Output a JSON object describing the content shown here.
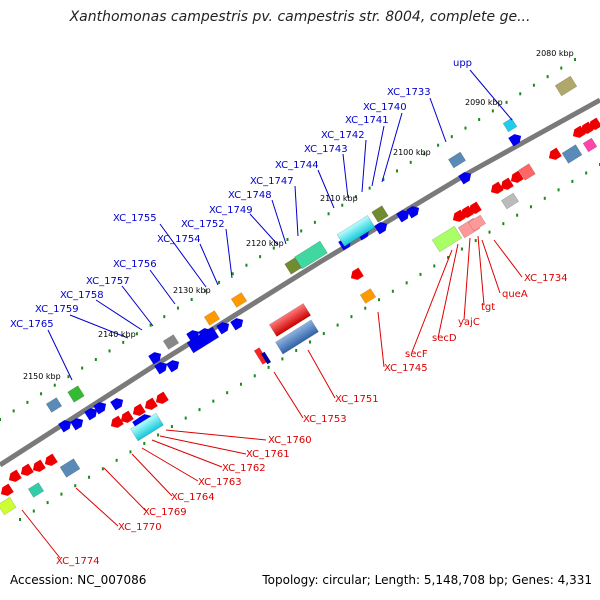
{
  "title": "Xanthomonas campestris pv. campestris str. 8004, complete ge...",
  "footer": {
    "accession": "Accession: NC_007086",
    "summary": "Topology: circular; Length: 5,148,708 bp; Genes: 4,331"
  },
  "colors": {
    "plus_label": "#0000cc",
    "minus_label": "#dd0000",
    "forward_gene": "#0000ee",
    "reverse_gene": "#ee0000",
    "dna": "#7a7a7a",
    "scale_dot": "#1a8a1a"
  },
  "scale_ticks": [
    "2080 kbp",
    "2090 kbp",
    "2100 kbp",
    "2110 kbp",
    "2120 kbp",
    "2130 kbp",
    "2140 kbp",
    "2150 kbp"
  ],
  "plus_strand_genes": [
    "upp",
    "XC_1733",
    "XC_1740",
    "XC_1741",
    "XC_1742",
    "XC_1743",
    "XC_1744",
    "XC_1747",
    "XC_1748",
    "XC_1749",
    "XC_1752",
    "XC_1754",
    "XC_1755",
    "XC_1756",
    "XC_1757",
    "XC_1758",
    "XC_1759",
    "XC_1765"
  ],
  "minus_strand_genes": [
    "XC_1734",
    "queA",
    "tgt",
    "yajC",
    "secD",
    "secF",
    "XC_1745",
    "XC_1751",
    "XC_1753",
    "XC_1760",
    "XC_1761",
    "XC_1762",
    "XC_1763",
    "XC_1764",
    "XC_1769",
    "XC_1770",
    "XC_1774"
  ]
}
